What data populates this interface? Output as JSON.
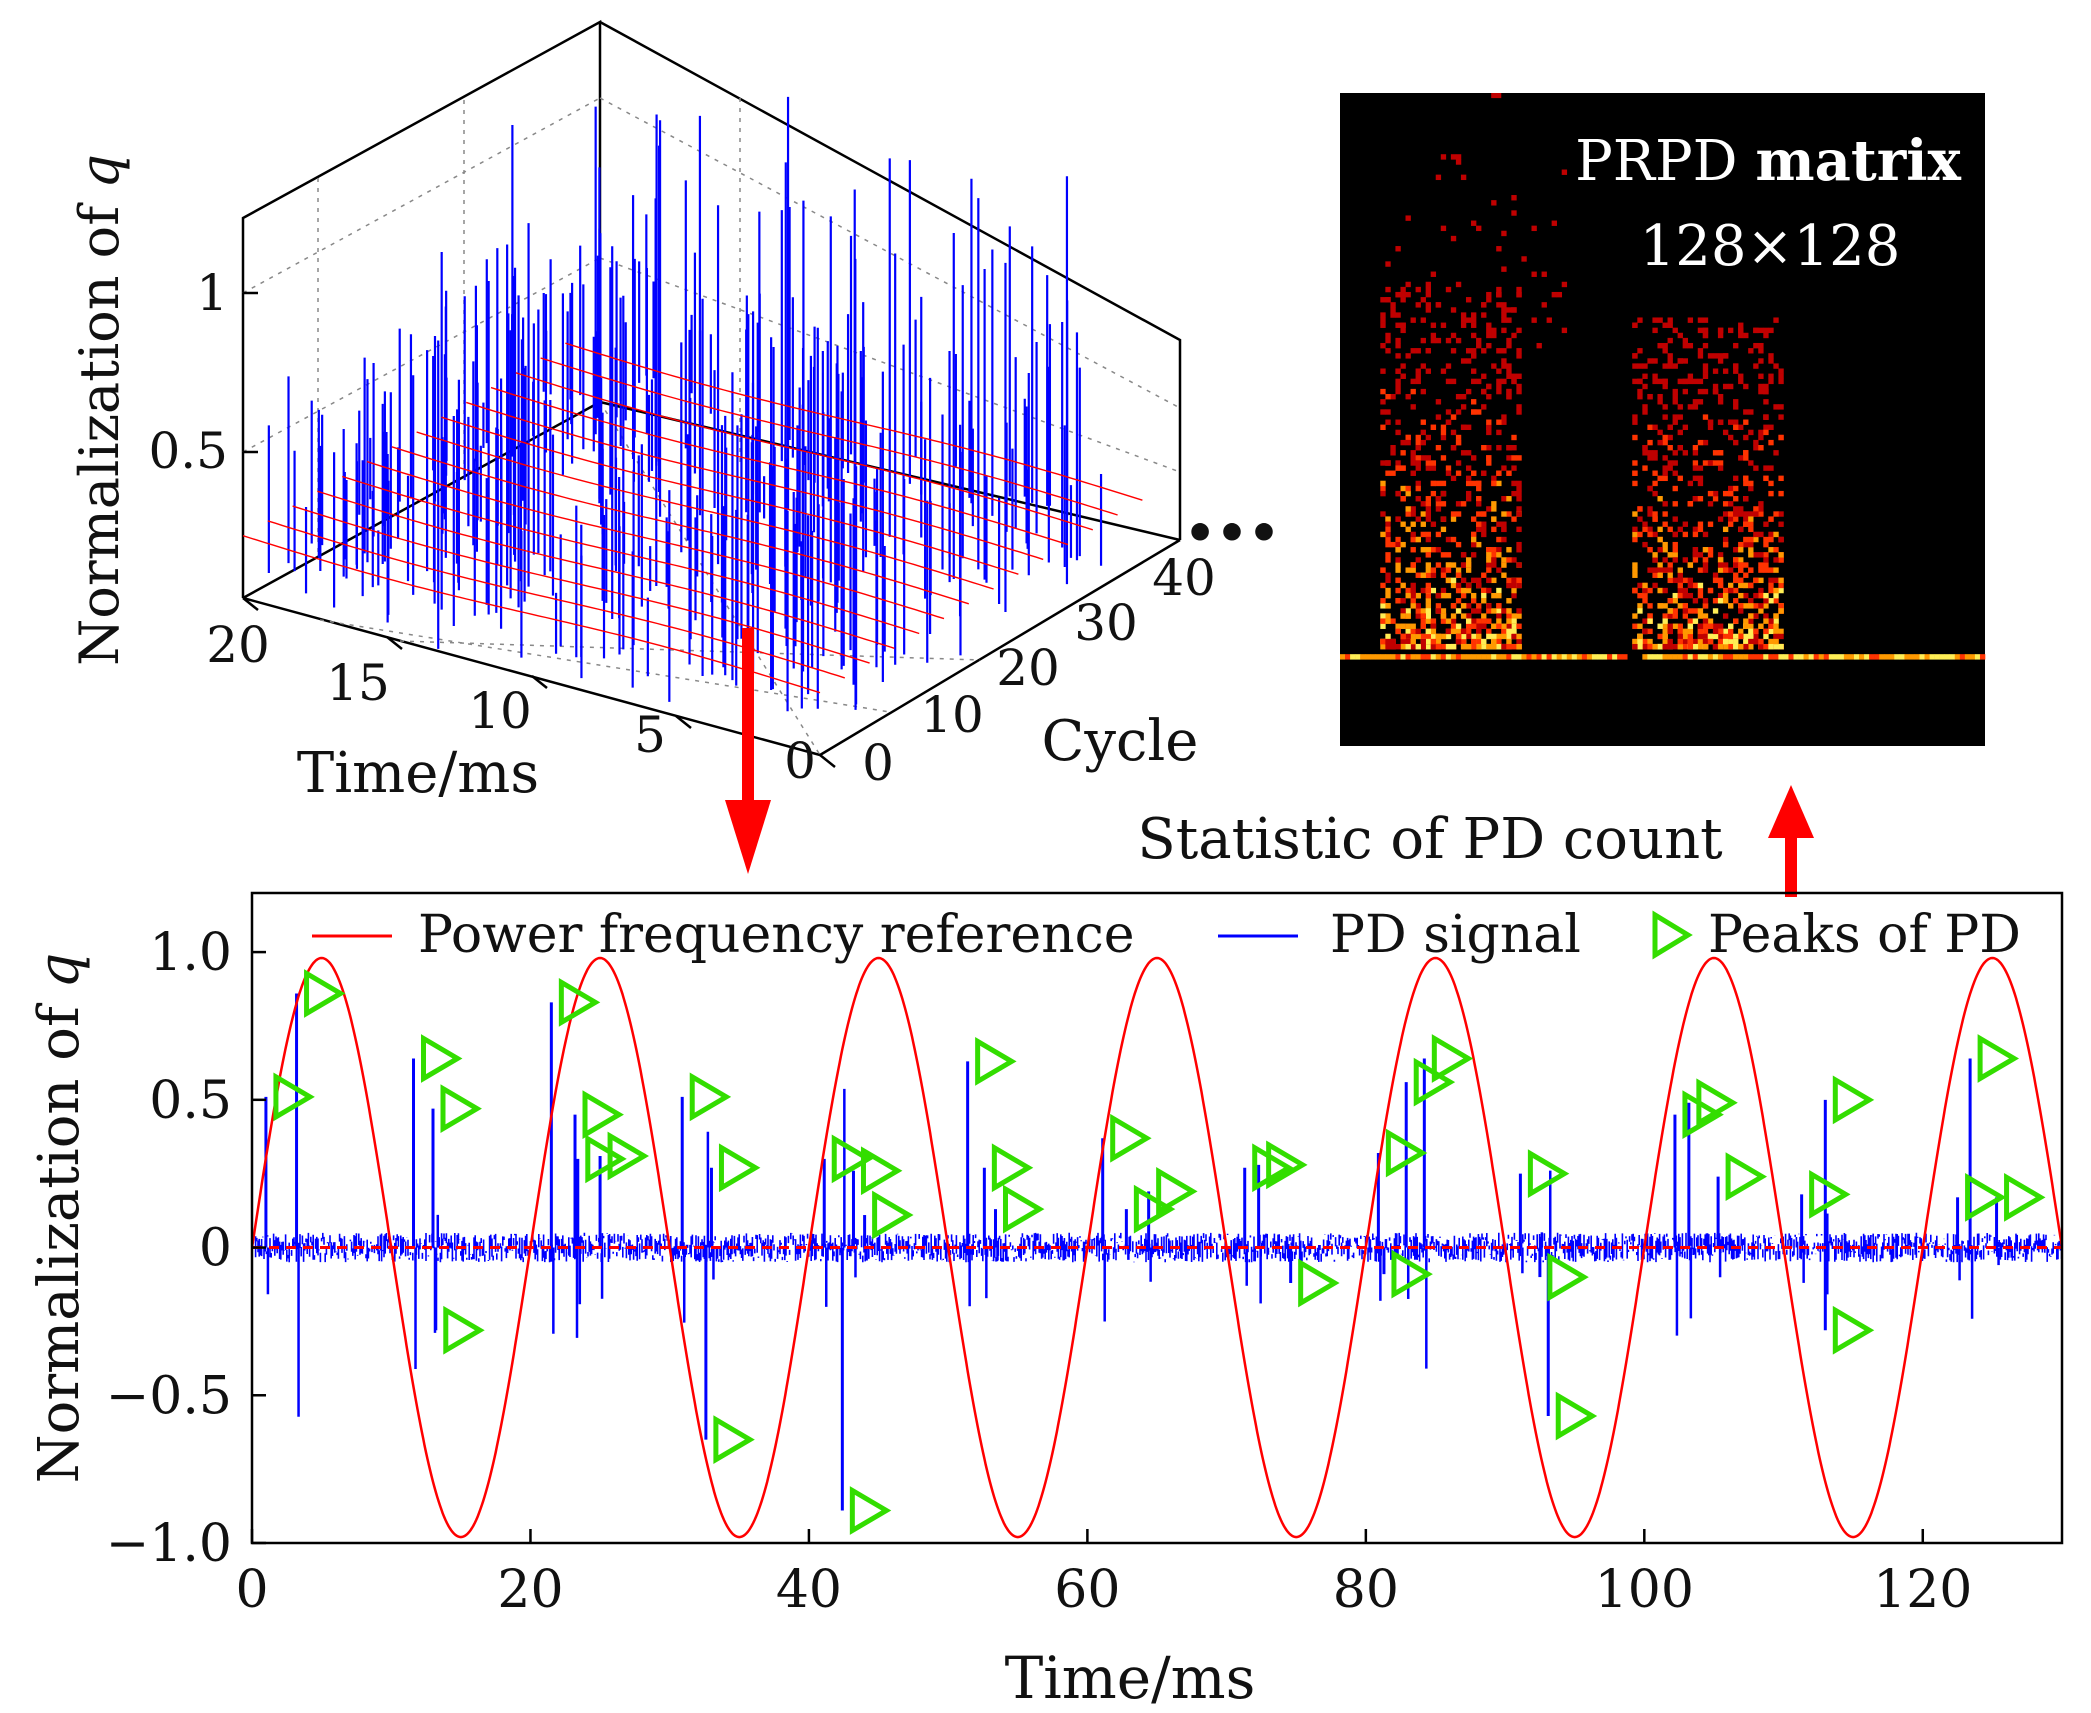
{
  "chart_data": [
    {
      "type": "bar",
      "name": "3d-pd-pulses",
      "z_label": "Normalization of ",
      "z_label_var": "q",
      "x_label": "Time/ms",
      "y_label": "Cycle",
      "ellipsis": "•••",
      "z_ticks": [
        "0.5",
        "1"
      ],
      "x_ticks": [
        "20",
        "15",
        "10",
        "5",
        "0"
      ],
      "y_ticks": [
        "0",
        "10",
        "20",
        "30",
        "40"
      ],
      "x_range": [
        0,
        20
      ],
      "y_range": [
        0,
        45
      ],
      "z_range": [
        0,
        1.3
      ]
    },
    {
      "type": "heatmap",
      "name": "prpd-matrix",
      "title_line1_a": "PRPD ",
      "title_line1_b": "matrix",
      "title_line2": "128×128",
      "size": [
        128,
        128
      ],
      "colors": [
        "#000000",
        "#c00000",
        "#ff3300",
        "#ff9900",
        "#ffee55"
      ]
    },
    {
      "type": "line",
      "name": "pd-time-series",
      "xlabel": "Time/ms",
      "ylabel": "Normalization of ",
      "ylabel_var": "q",
      "xlim": [
        0,
        130
      ],
      "ylim": [
        -1.0,
        1.2
      ],
      "x_ticks": [
        "0",
        "20",
        "40",
        "60",
        "80",
        "100",
        "120"
      ],
      "y_ticks": [
        "-1.0",
        "-0.5",
        "0",
        "0.5",
        "1.0"
      ],
      "y_tick_values": [
        -1.0,
        -0.5,
        0,
        0.5,
        1.0
      ],
      "x_tick_values": [
        0,
        20,
        40,
        60,
        80,
        100,
        120
      ],
      "series": [
        {
          "name": "Power frequency reference",
          "color": "#ff0000",
          "function": "0.98*sin(2*pi*50*t)",
          "amplitude": 0.98,
          "frequency_hz": 50
        },
        {
          "name": "PD signal",
          "color": "#0000ff",
          "noise_level": 0.05
        },
        {
          "name": "Peaks of PD",
          "color": "#33dd00",
          "marker": "right-triangle",
          "points": [
            [
              1.0,
              0.51
            ],
            [
              3.2,
              0.86
            ],
            [
              11.6,
              0.64
            ],
            [
              13.0,
              0.47
            ],
            [
              13.2,
              -0.28
            ],
            [
              21.5,
              0.83
            ],
            [
              23.2,
              0.45
            ],
            [
              23.4,
              0.3
            ],
            [
              25.0,
              0.31
            ],
            [
              30.9,
              0.51
            ],
            [
              33.0,
              0.27
            ],
            [
              32.6,
              -0.65
            ],
            [
              41.1,
              0.3
            ],
            [
              43.2,
              0.26
            ],
            [
              44.0,
              0.11
            ],
            [
              42.4,
              -0.89
            ],
            [
              51.4,
              0.63
            ],
            [
              52.6,
              0.27
            ],
            [
              53.4,
              0.13
            ],
            [
              61.1,
              0.37
            ],
            [
              62.8,
              0.13
            ],
            [
              64.4,
              0.19
            ],
            [
              71.3,
              0.27
            ],
            [
              72.3,
              0.28
            ],
            [
              74.6,
              -0.12
            ],
            [
              80.9,
              0.32
            ],
            [
              82.9,
              0.56
            ],
            [
              84.2,
              0.64
            ],
            [
              81.3,
              -0.09
            ],
            [
              91.1,
              0.25
            ],
            [
              92.5,
              -0.1
            ],
            [
              93.1,
              -0.57
            ],
            [
              102.2,
              0.45
            ],
            [
              103.2,
              0.49
            ],
            [
              105.3,
              0.24
            ],
            [
              111.3,
              0.18
            ],
            [
              113.0,
              0.5
            ],
            [
              113.0,
              -0.28
            ],
            [
              123.4,
              0.64
            ],
            [
              122.5,
              0.17
            ],
            [
              125.3,
              0.17
            ]
          ]
        }
      ],
      "legend_location": "top"
    }
  ],
  "annotations": {
    "statistic_label": "Statistic of PD count"
  }
}
